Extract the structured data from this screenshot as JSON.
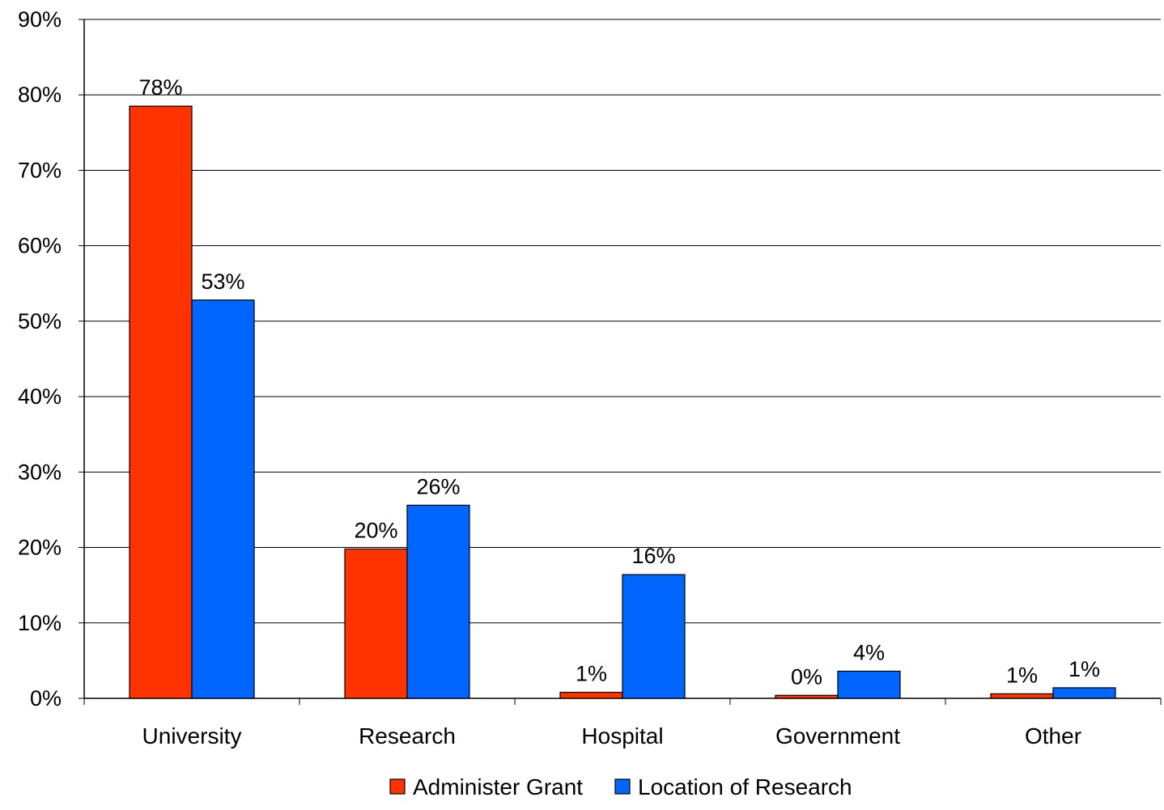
{
  "chart_data": {
    "type": "bar",
    "categories": [
      "University",
      "Research",
      "Hospital",
      "Government",
      "Other"
    ],
    "series": [
      {
        "name": "Administer Grant",
        "color": "#FF3300",
        "values": [
          78.5,
          19.8,
          0.8,
          0.4,
          0.6
        ],
        "labels": [
          "78%",
          "20%",
          "1%",
          "0%",
          "1%"
        ]
      },
      {
        "name": "Location of Research",
        "color": "#0066FF",
        "values": [
          52.8,
          25.6,
          16.4,
          3.6,
          1.4
        ],
        "labels": [
          "53%",
          "26%",
          "16%",
          "4%",
          "1%"
        ]
      }
    ],
    "y_ticks": [
      "0%",
      "10%",
      "20%",
      "30%",
      "40%",
      "50%",
      "60%",
      "70%",
      "80%",
      "90%"
    ],
    "ylim": [
      0,
      90
    ],
    "grid": true,
    "legend_position": "bottom-center"
  }
}
